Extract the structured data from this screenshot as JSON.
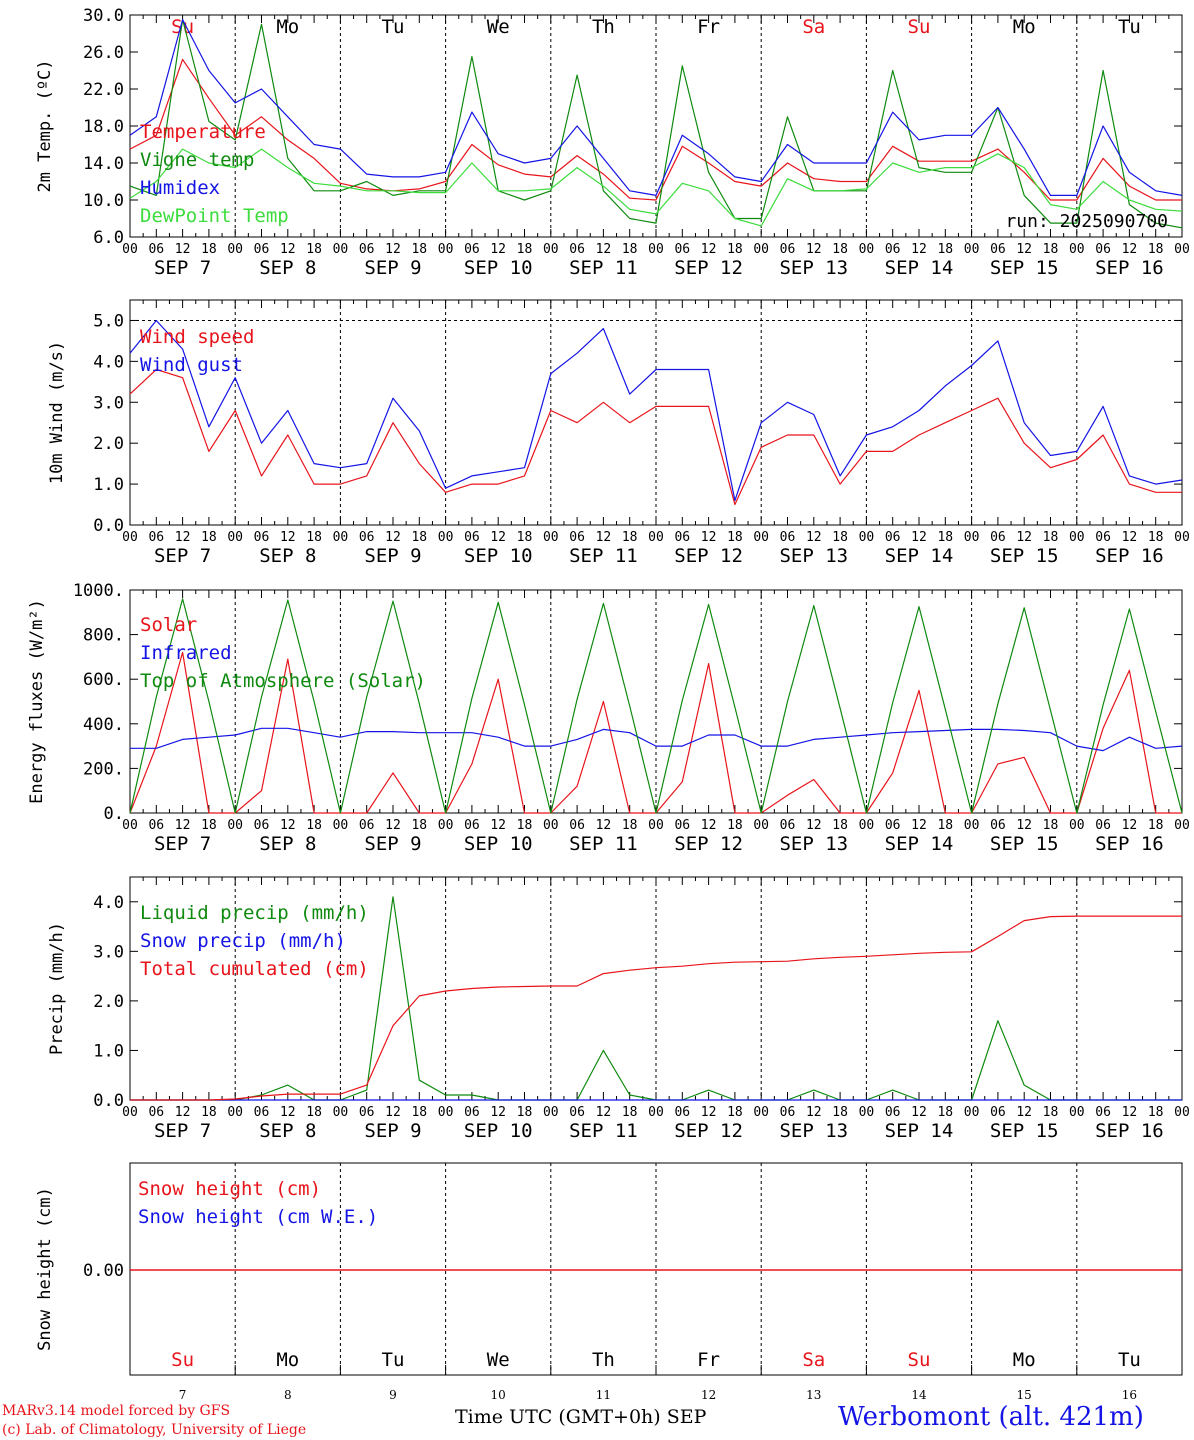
{
  "run_label": "run: 2025090700",
  "footer": {
    "model": "MARv3.14 model forced by GFS",
    "credit": "(c) Lab. of Climatology, University of Liege",
    "xlabel": "Time UTC (GMT+0h)",
    "month": "SEP",
    "station": "Werbomont (alt. 421m)"
  },
  "days": {
    "weekday": [
      "Su",
      "Mo",
      "Tu",
      "We",
      "Th",
      "Fr",
      "Sa",
      "Su",
      "Mo",
      "Tu"
    ],
    "weekend": [
      true,
      false,
      false,
      false,
      false,
      false,
      true,
      true,
      false,
      false
    ],
    "date": [
      "SEP 7",
      "SEP 8",
      "SEP 9",
      "SEP 10",
      "SEP 11",
      "SEP 12",
      "SEP 13",
      "SEP 14",
      "SEP 15",
      "SEP 16"
    ],
    "daynum": [
      "7",
      "8",
      "9",
      "10",
      "11",
      "12",
      "13",
      "14",
      "15",
      "16"
    ]
  },
  "hour_ticks": [
    "00",
    "06",
    "12",
    "18"
  ],
  "colors": {
    "red": "#e8141b",
    "green": "#0f8a0f",
    "blue": "#1414e6",
    "lightgreen": "#3ddc3d",
    "weekend": "#e8141b"
  },
  "chart_data": [
    {
      "type": "line",
      "ylabel": "2m Temp. (ºC)",
      "ylim": [
        6,
        30
      ],
      "yticks": [
        "6.0",
        "10.0",
        "14.0",
        "18.0",
        "22.0",
        "26.0",
        "30.0"
      ],
      "x_hours_from_sep7_00utc": [
        0,
        6,
        12,
        18,
        24,
        30,
        36,
        42,
        48,
        54,
        60,
        66,
        72,
        78,
        84,
        90,
        96,
        102,
        108,
        114,
        120,
        126,
        132,
        138,
        144,
        150,
        156,
        162,
        168,
        174,
        180,
        186,
        192,
        198,
        204,
        210,
        216,
        222,
        228,
        234,
        240
      ],
      "series": [
        {
          "name": "Temperature",
          "color": "red",
          "values": [
            15.5,
            17.0,
            25.2,
            21.0,
            17.0,
            19.0,
            16.5,
            14.5,
            11.8,
            11.2,
            11.0,
            11.2,
            12.0,
            16.0,
            13.8,
            12.8,
            12.5,
            14.8,
            12.8,
            10.2,
            10.0,
            15.8,
            14.0,
            12.0,
            11.5,
            14.0,
            12.3,
            12.0,
            12.0,
            15.8,
            14.2,
            14.2,
            14.2,
            15.5,
            13.0,
            10.0,
            10.0,
            14.5,
            11.5,
            10.0,
            10.0
          ]
        },
        {
          "name": "Vigne temp",
          "color": "green",
          "values": [
            11.5,
            10.5,
            29.5,
            18.5,
            16.5,
            29.0,
            14.5,
            11.0,
            11.0,
            12.0,
            10.5,
            11.0,
            11.0,
            25.5,
            11.0,
            10.0,
            11.0,
            23.5,
            11.0,
            8.0,
            7.5,
            24.5,
            13.0,
            8.0,
            8.0,
            19.0,
            11.0,
            11.0,
            11.0,
            24.0,
            13.5,
            13.0,
            13.0,
            20.0,
            10.5,
            7.5,
            7.5,
            24.0,
            9.5,
            7.5,
            7.0
          ]
        },
        {
          "name": "Humidex",
          "color": "blue",
          "values": [
            17.0,
            19.0,
            29.5,
            24.0,
            20.5,
            22.0,
            19.0,
            16.0,
            15.5,
            12.8,
            12.5,
            12.5,
            13.0,
            19.5,
            15.0,
            14.0,
            14.5,
            18.0,
            14.5,
            11.0,
            10.5,
            17.0,
            15.0,
            12.5,
            12.0,
            16.0,
            14.0,
            14.0,
            14.0,
            19.5,
            16.5,
            17.0,
            17.0,
            20.0,
            15.5,
            10.5,
            10.5,
            18.0,
            13.0,
            11.0,
            10.5
          ]
        },
        {
          "name": "DewPoint Temp",
          "color": "lightgreen",
          "values": [
            10.2,
            12.0,
            15.5,
            14.0,
            13.5,
            15.5,
            13.5,
            11.8,
            11.5,
            11.0,
            11.0,
            10.8,
            10.8,
            14.0,
            11.0,
            11.0,
            11.2,
            13.5,
            11.5,
            9.0,
            8.5,
            11.8,
            11.0,
            8.0,
            7.2,
            12.3,
            11.0,
            11.0,
            11.2,
            14.0,
            13.0,
            13.5,
            13.5,
            15.0,
            13.5,
            9.5,
            9.0,
            12.0,
            10.0,
            9.0,
            8.8
          ]
        }
      ]
    },
    {
      "type": "line",
      "ylabel": "10m Wind (m/s)",
      "ylim": [
        0,
        5.5
      ],
      "yticks": [
        "0.0",
        "1.0",
        "2.0",
        "3.0",
        "4.0",
        "5.0"
      ],
      "x_hours_from_sep7_00utc": [
        0,
        6,
        12,
        18,
        24,
        30,
        36,
        42,
        48,
        54,
        60,
        66,
        72,
        78,
        84,
        90,
        96,
        102,
        108,
        114,
        120,
        126,
        132,
        138,
        144,
        150,
        156,
        162,
        168,
        174,
        180,
        186,
        192,
        198,
        204,
        210,
        216,
        222,
        228,
        234,
        240
      ],
      "series": [
        {
          "name": "Wind speed",
          "color": "red",
          "values": [
            3.2,
            3.8,
            3.6,
            1.8,
            2.8,
            1.2,
            2.2,
            1.0,
            1.0,
            1.2,
            2.5,
            1.5,
            0.8,
            1.0,
            1.0,
            1.2,
            2.8,
            2.5,
            3.0,
            2.5,
            2.9,
            2.9,
            2.9,
            0.5,
            1.9,
            2.2,
            2.2,
            1.0,
            1.8,
            1.8,
            2.2,
            2.5,
            2.8,
            3.1,
            2.0,
            1.4,
            1.6,
            2.2,
            1.0,
            0.8,
            0.8
          ]
        },
        {
          "name": "Wind gust",
          "color": "blue",
          "values": [
            4.2,
            5.0,
            4.3,
            2.4,
            3.6,
            2.0,
            2.8,
            1.5,
            1.4,
            1.5,
            3.1,
            2.3,
            0.9,
            1.2,
            1.3,
            1.4,
            3.7,
            4.2,
            4.8,
            3.2,
            3.8,
            3.8,
            3.8,
            0.6,
            2.5,
            3.0,
            2.7,
            1.2,
            2.2,
            2.4,
            2.8,
            3.4,
            3.9,
            4.5,
            2.5,
            1.7,
            1.8,
            2.9,
            1.2,
            1.0,
            1.1
          ]
        }
      ]
    },
    {
      "type": "line",
      "ylabel": "Energy fluxes (W/m²)",
      "ylim": [
        0,
        1000
      ],
      "yticks": [
        "0.",
        "200.",
        "400.",
        "600.",
        "800.",
        "1000."
      ],
      "x_hours_from_sep7_00utc": [
        0,
        6,
        12,
        18,
        24,
        30,
        36,
        42,
        48,
        54,
        60,
        66,
        72,
        78,
        84,
        90,
        96,
        102,
        108,
        114,
        120,
        126,
        132,
        138,
        144,
        150,
        156,
        162,
        168,
        174,
        180,
        186,
        192,
        198,
        204,
        210,
        216,
        222,
        228,
        234,
        240
      ],
      "series": [
        {
          "name": "Solar",
          "color": "red",
          "values": [
            0,
            300,
            720,
            0,
            0,
            100,
            690,
            0,
            0,
            0,
            180,
            0,
            0,
            220,
            600,
            0,
            0,
            120,
            500,
            0,
            0,
            140,
            670,
            0,
            0,
            80,
            150,
            0,
            0,
            180,
            550,
            0,
            0,
            220,
            250,
            0,
            0,
            380,
            640,
            0,
            0
          ]
        },
        {
          "name": "Infrared",
          "color": "blue",
          "values": [
            290,
            290,
            330,
            340,
            350,
            380,
            380,
            360,
            340,
            365,
            365,
            360,
            360,
            360,
            340,
            300,
            300,
            330,
            375,
            360,
            300,
            300,
            350,
            350,
            300,
            300,
            330,
            340,
            350,
            360,
            365,
            370,
            375,
            375,
            370,
            360,
            300,
            280,
            340,
            290,
            300
          ]
        },
        {
          "name": "Top of Atmosphere (Solar)",
          "color": "green",
          "values": [
            0,
            520,
            960,
            500,
            0,
            520,
            955,
            500,
            0,
            520,
            950,
            490,
            0,
            515,
            945,
            485,
            0,
            510,
            940,
            480,
            0,
            505,
            935,
            475,
            0,
            500,
            930,
            470,
            0,
            495,
            925,
            465,
            0,
            490,
            920,
            460,
            0,
            485,
            915,
            455,
            0
          ]
        }
      ]
    },
    {
      "type": "line",
      "ylabel": "Precip (mm/h)",
      "ylim": [
        0,
        4.5
      ],
      "yticks": [
        "0.0",
        "1.0",
        "2.0",
        "3.0",
        "4.0"
      ],
      "x_hours_from_sep7_00utc": [
        0,
        6,
        12,
        18,
        24,
        30,
        36,
        42,
        48,
        54,
        60,
        66,
        72,
        78,
        84,
        90,
        96,
        102,
        108,
        114,
        120,
        126,
        132,
        138,
        144,
        150,
        156,
        162,
        168,
        174,
        180,
        186,
        192,
        198,
        204,
        210,
        216,
        222,
        228,
        234,
        240
      ],
      "series": [
        {
          "name": "Liquid precip (mm/h)",
          "color": "green",
          "values": [
            0,
            0,
            0,
            0,
            0,
            0.1,
            0.3,
            0,
            0,
            0.2,
            4.1,
            0.4,
            0.1,
            0.1,
            0,
            0,
            0,
            0,
            1.0,
            0.1,
            0,
            0,
            0.2,
            0,
            0,
            0,
            0.2,
            0,
            0,
            0.2,
            0,
            0,
            0,
            1.6,
            0.3,
            0,
            0,
            0,
            0,
            0,
            0
          ]
        },
        {
          "name": "Snow precip (mm/h)",
          "color": "blue",
          "values": [
            0,
            0,
            0,
            0,
            0,
            0,
            0,
            0,
            0,
            0,
            0,
            0,
            0,
            0,
            0,
            0,
            0,
            0,
            0,
            0,
            0,
            0,
            0,
            0,
            0,
            0,
            0,
            0,
            0,
            0,
            0,
            0,
            0,
            0,
            0,
            0,
            0,
            0,
            0,
            0,
            0
          ]
        },
        {
          "name": "Total cumulated (cm)",
          "color": "red",
          "values": [
            0,
            0,
            0,
            0,
            0.02,
            0.08,
            0.12,
            0.12,
            0.12,
            0.3,
            1.5,
            2.1,
            2.2,
            2.25,
            2.28,
            2.29,
            2.3,
            2.3,
            2.55,
            2.62,
            2.67,
            2.7,
            2.75,
            2.78,
            2.79,
            2.8,
            2.85,
            2.88,
            2.9,
            2.93,
            2.96,
            2.98,
            2.99,
            3.3,
            3.62,
            3.7,
            3.71,
            3.71,
            3.71,
            3.71,
            3.71
          ]
        }
      ]
    },
    {
      "type": "line",
      "ylabel": "Snow height (cm)",
      "yticks": [
        "0.00"
      ],
      "series": [
        {
          "name": "Snow height (cm)",
          "color": "red",
          "values": [
            0,
            0
          ]
        },
        {
          "name": "Snow height (cm W.E.)",
          "color": "blue",
          "values": [
            0,
            0
          ]
        }
      ]
    }
  ]
}
